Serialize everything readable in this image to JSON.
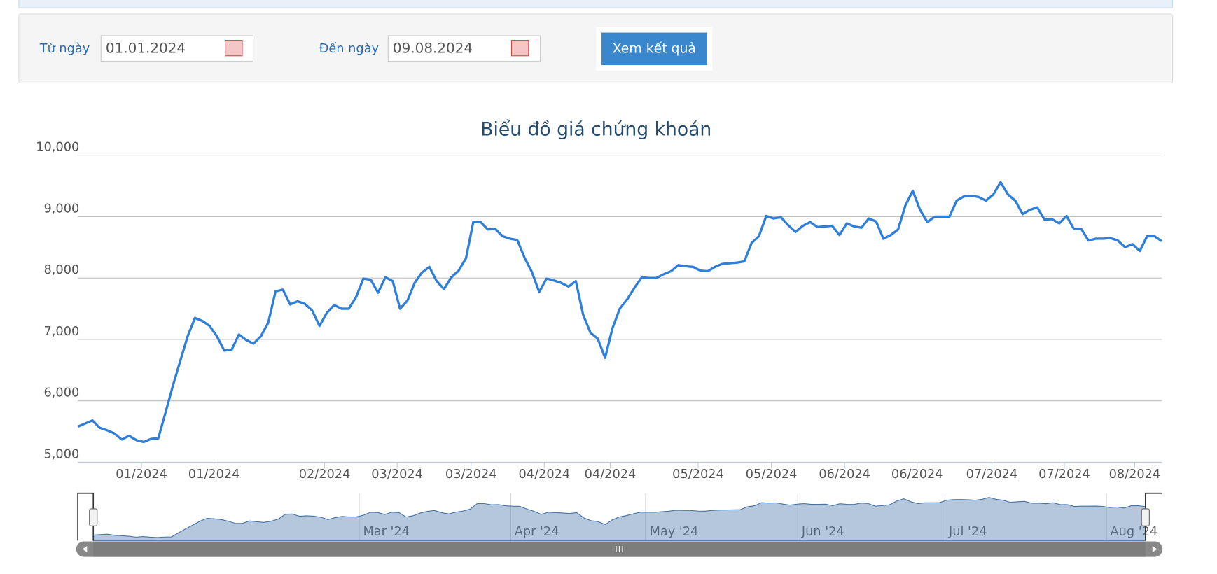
{
  "form": {
    "from_label": "Từ ngày",
    "from_value": "01.01.2024",
    "to_label": "Đến ngày",
    "to_value": "09.08.2024",
    "button": "Xem kết quả"
  },
  "chart_data": {
    "type": "line",
    "title": "Biểu đồ giá chứng khoán",
    "color": "#2f7ed8",
    "grid": true,
    "values": [
      5580,
      5630,
      5680,
      5560,
      5520,
      5470,
      5370,
      5430,
      5360,
      5330,
      5380,
      5390,
      5820,
      6250,
      6650,
      7050,
      7350,
      7300,
      7220,
      7050,
      6820,
      6830,
      7080,
      6990,
      6930,
      7050,
      7270,
      7780,
      7810,
      7570,
      7620,
      7580,
      7470,
      7220,
      7430,
      7560,
      7500,
      7500,
      7690,
      7990,
      7970,
      7760,
      8010,
      7950,
      7500,
      7630,
      7920,
      8090,
      8180,
      7950,
      7820,
      8010,
      8120,
      8320,
      8910,
      8910,
      8790,
      8800,
      8680,
      8640,
      8620,
      8330,
      8100,
      7770,
      7990,
      7960,
      7920,
      7860,
      7950,
      7400,
      7110,
      7010,
      6700,
      7180,
      7500,
      7650,
      7840,
      8010,
      8000,
      8000,
      8060,
      8110,
      8210,
      8190,
      8180,
      8120,
      8110,
      8180,
      8230,
      8240,
      8250,
      8270,
      8570,
      8680,
      9010,
      8970,
      8990,
      8860,
      8750,
      8850,
      8910,
      8830,
      8840,
      8850,
      8700,
      8890,
      8840,
      8820,
      8970,
      8920,
      8640,
      8700,
      8790,
      9180,
      9420,
      9110,
      8910,
      9000,
      9000,
      9000,
      9260,
      9330,
      9340,
      9320,
      9260,
      9360,
      9560,
      9360,
      9260,
      9040,
      9110,
      9150,
      8950,
      8960,
      8890,
      9010,
      8800,
      8800,
      8610,
      8640,
      8640,
      8650,
      8610,
      8500,
      8550,
      8440,
      8680,
      8680,
      8600
    ],
    "ylim": [
      5000,
      10000
    ],
    "yticks": [
      {
        "value": 5000,
        "label": "5,000"
      },
      {
        "value": 6000,
        "label": "6,000"
      },
      {
        "value": 7000,
        "label": "7,000"
      },
      {
        "value": 8000,
        "label": "8,000"
      },
      {
        "value": 9000,
        "label": "9,000"
      },
      {
        "value": 10000,
        "label": "10,000"
      }
    ],
    "xlim": [
      0,
      148
    ],
    "xticks": [
      {
        "value": 8.7,
        "label": "01/2024"
      },
      {
        "value": 18.6,
        "label": "01/2024"
      },
      {
        "value": 33.7,
        "label": "02/2024"
      },
      {
        "value": 43.6,
        "label": "03/2024"
      },
      {
        "value": 53.7,
        "label": "03/2024"
      },
      {
        "value": 63.7,
        "label": "04/2024"
      },
      {
        "value": 72.7,
        "label": "04/2024"
      },
      {
        "value": 84.7,
        "label": "05/2024"
      },
      {
        "value": 94.7,
        "label": "05/2024"
      },
      {
        "value": 104.7,
        "label": "06/2024"
      },
      {
        "value": 114.6,
        "label": "06/2024"
      },
      {
        "value": 124.8,
        "label": "07/2024"
      },
      {
        "value": 134.7,
        "label": "07/2024"
      },
      {
        "value": 144.3,
        "label": "08/2024"
      }
    ],
    "navigator_xticks": [
      {
        "value": 37.4,
        "label": "Mar '24"
      },
      {
        "value": 58.7,
        "label": "Apr '24"
      },
      {
        "value": 77.7,
        "label": "May '24"
      },
      {
        "value": 99.1,
        "label": "Jun '24"
      },
      {
        "value": 119.8,
        "label": "Jul '24"
      },
      {
        "value": 142.5,
        "label": "Aug '24"
      }
    ]
  }
}
